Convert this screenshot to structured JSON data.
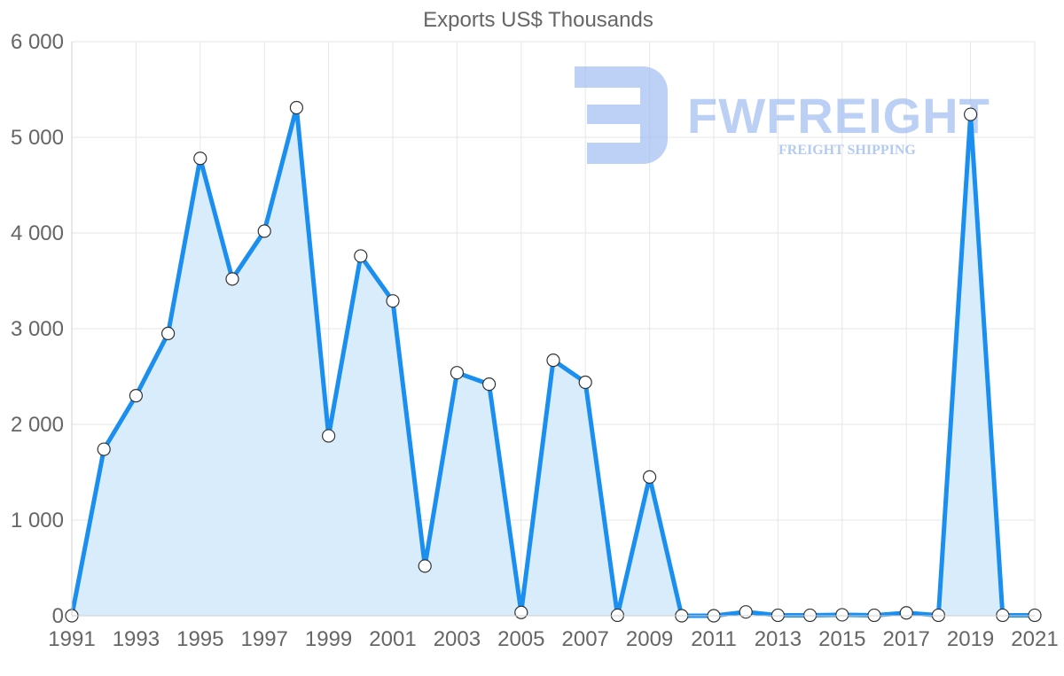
{
  "watermark": {
    "brand": "FWFREIGHT",
    "tagline": "FREIGHT SHIPPING",
    "color": "#9dbbf0"
  },
  "chart_data": {
    "type": "area",
    "title": "Exports US$ Thousands",
    "xlabel": "",
    "ylabel": "",
    "ylim": [
      0,
      6000
    ],
    "yticks": [
      0,
      1000,
      2000,
      3000,
      4000,
      5000,
      6000
    ],
    "ytick_labels": [
      "0",
      "1 000",
      "2 000",
      "3 000",
      "4 000",
      "5 000",
      "6 000"
    ],
    "xlim": [
      1991,
      2021
    ],
    "xtick_labels": [
      "1991",
      "1993",
      "1995",
      "1997",
      "1999",
      "2001",
      "2003",
      "2005",
      "2007",
      "2009",
      "2011",
      "2013",
      "2015",
      "2017",
      "2019",
      "2021"
    ],
    "grid": true,
    "line_color": "#1a8ff0",
    "fill_color": "#d9ecfb",
    "series": [
      {
        "name": "Exports US$ Thousands",
        "x": [
          1991,
          1992,
          1993,
          1994,
          1995,
          1996,
          1997,
          1998,
          1999,
          2000,
          2001,
          2002,
          2003,
          2004,
          2005,
          2006,
          2007,
          2008,
          2009,
          2010,
          2011,
          2012,
          2013,
          2014,
          2015,
          2016,
          2017,
          2018,
          2019,
          2020,
          2021
        ],
        "values": [
          0,
          1740,
          2300,
          2950,
          4780,
          3520,
          4020,
          5310,
          1880,
          3760,
          3290,
          520,
          2540,
          2420,
          35,
          2670,
          2440,
          5,
          1450,
          0,
          0,
          40,
          5,
          5,
          10,
          5,
          30,
          5,
          5240,
          5,
          5
        ]
      }
    ]
  }
}
